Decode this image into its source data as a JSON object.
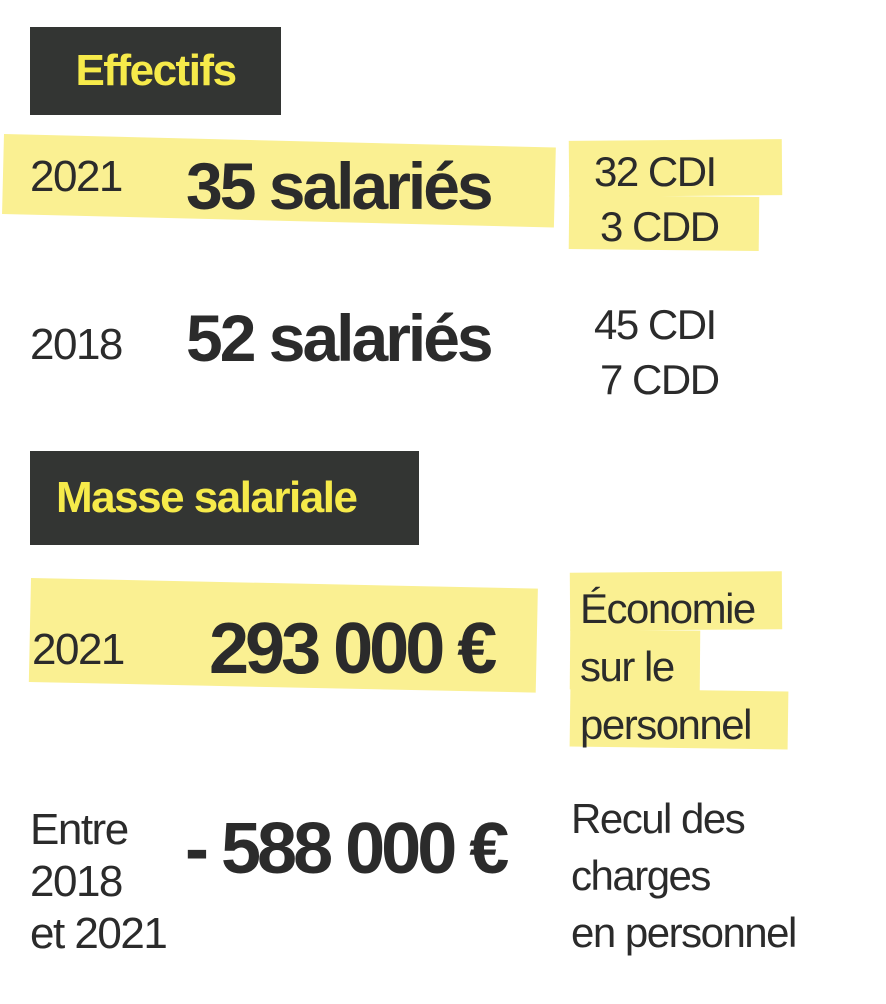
{
  "effectifs": {
    "title": "Effectifs",
    "rows": [
      {
        "year": "2021",
        "total": "35 salariés",
        "cdi": "32 CDI",
        "cdd": "3 CDD"
      },
      {
        "year": "2018",
        "total": "52 salariés",
        "cdi": "45 CDI",
        "cdd": "7 CDD"
      }
    ]
  },
  "masse": {
    "title": "Masse salariale",
    "row2021": {
      "year": "2021",
      "amount": "293 000 €",
      "note": [
        "Économie",
        "sur le",
        "personnel"
      ]
    },
    "rowChange": {
      "period": [
        "Entre",
        "2018",
        "et 2021"
      ],
      "amount": "- 588 000 €",
      "note": [
        "Recul des",
        "charges",
        "en personnel"
      ]
    }
  },
  "colors": {
    "header_bg": "#333533",
    "header_text": "#f6ea4a",
    "highlight": "#faf092",
    "text": "#2b2b2b"
  }
}
